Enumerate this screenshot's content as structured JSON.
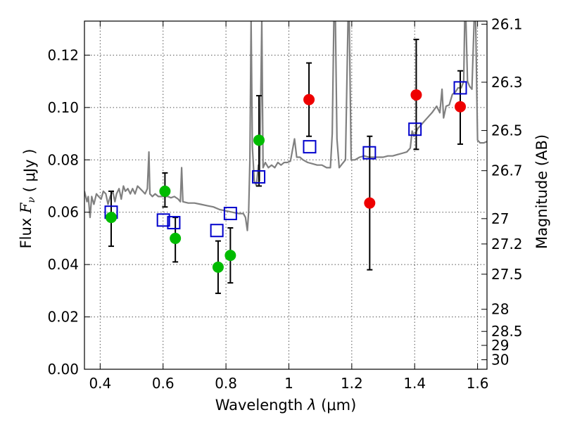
{
  "chart_data": {
    "type": "scatter",
    "xlabel_prefix": "Wavelength",
    "xlabel_symbol": "λ",
    "xlabel_unit": "(μm)",
    "ylabel_prefix": "Flux",
    "ylabel_symbol": "F",
    "ylabel_sub": "ν",
    "ylabel_unit": "( μJy )",
    "y2label": "Magnitude (AB)",
    "xlim": [
      0.35,
      1.63
    ],
    "ylim": [
      0.0,
      0.133
    ],
    "grid": true,
    "x_ticks": [
      0.4,
      0.6,
      0.8,
      1.0,
      1.2,
      1.4,
      1.6
    ],
    "x_tick_labels": [
      "0.4",
      "0.6",
      "0.8",
      "1",
      "1.2",
      "1.4",
      "1.6"
    ],
    "y_ticks": [
      0.0,
      0.02,
      0.04,
      0.06,
      0.08,
      0.1,
      0.12
    ],
    "y_tick_labels": [
      "0.00",
      "0.02",
      "0.04",
      "0.06",
      "0.08",
      "0.10",
      "0.12"
    ],
    "mag_ticks": [
      {
        "label": "26.1",
        "mag": 26.1
      },
      {
        "label": "26.3",
        "mag": 26.3
      },
      {
        "label": "26.5",
        "mag": 26.5
      },
      {
        "label": "26.7",
        "mag": 26.7
      },
      {
        "label": "27",
        "mag": 27.0
      },
      {
        "label": "27.2",
        "mag": 27.2
      },
      {
        "label": "27.5",
        "mag": 27.5
      },
      {
        "label": "28",
        "mag": 28.0
      },
      {
        "label": "28.5",
        "mag": 28.5
      },
      {
        "label": "29",
        "mag": 29.0
      },
      {
        "label": "30",
        "mag": 30.0
      }
    ],
    "series": [
      {
        "marker": "circle",
        "color": "#00bb00",
        "points": [
          {
            "x": 0.435,
            "y": 0.058,
            "err": [
              0.047,
              0.068
            ]
          },
          {
            "x": 0.606,
            "y": 0.068,
            "err": [
              0.062,
              0.075
            ]
          },
          {
            "x": 0.639,
            "y": 0.05,
            "err": [
              0.041,
              0.058
            ]
          },
          {
            "x": 0.775,
            "y": 0.039,
            "err": [
              0.029,
              0.049
            ]
          },
          {
            "x": 0.814,
            "y": 0.0435,
            "err": [
              0.033,
              0.054
            ]
          },
          {
            "x": 0.905,
            "y": 0.0875,
            "err": [
              0.07,
              0.1045
            ]
          }
        ]
      },
      {
        "marker": "circle",
        "color": "#ee0000",
        "points": [
          {
            "x": 1.064,
            "y": 0.103,
            "err": [
              0.089,
              0.117
            ]
          },
          {
            "x": 1.257,
            "y": 0.0635,
            "err": [
              0.038,
              0.089
            ]
          },
          {
            "x": 1.405,
            "y": 0.1048,
            "err": [
              0.084,
              0.126
            ]
          },
          {
            "x": 1.545,
            "y": 0.1003,
            "err": [
              0.086,
              0.114
            ]
          }
        ]
      },
      {
        "marker": "square-open",
        "color": "#0000cc",
        "points": [
          {
            "x": 0.435,
            "y": 0.06
          },
          {
            "x": 0.601,
            "y": 0.057
          },
          {
            "x": 0.634,
            "y": 0.056
          },
          {
            "x": 0.771,
            "y": 0.053
          },
          {
            "x": 0.814,
            "y": 0.0595
          },
          {
            "x": 0.904,
            "y": 0.0735
          },
          {
            "x": 1.066,
            "y": 0.085
          },
          {
            "x": 1.256,
            "y": 0.0827
          },
          {
            "x": 1.401,
            "y": 0.0917
          },
          {
            "x": 1.545,
            "y": 0.1075
          }
        ]
      },
      {
        "type": "line",
        "color": "#808080",
        "points": [
          [
            0.35,
            0.068
          ],
          [
            0.358,
            0.064
          ],
          [
            0.362,
            0.066
          ],
          [
            0.368,
            0.058
          ],
          [
            0.373,
            0.066
          ],
          [
            0.38,
            0.063
          ],
          [
            0.388,
            0.067
          ],
          [
            0.395,
            0.066
          ],
          [
            0.403,
            0.065
          ],
          [
            0.41,
            0.068
          ],
          [
            0.418,
            0.067
          ],
          [
            0.425,
            0.063
          ],
          [
            0.432,
            0.066
          ],
          [
            0.44,
            0.068
          ],
          [
            0.447,
            0.064
          ],
          [
            0.452,
            0.067
          ],
          [
            0.46,
            0.069
          ],
          [
            0.467,
            0.065
          ],
          [
            0.474,
            0.07
          ],
          [
            0.48,
            0.068
          ],
          [
            0.488,
            0.069
          ],
          [
            0.496,
            0.067
          ],
          [
            0.503,
            0.069
          ],
          [
            0.511,
            0.067
          ],
          [
            0.519,
            0.07
          ],
          [
            0.527,
            0.069
          ],
          [
            0.535,
            0.068
          ],
          [
            0.543,
            0.067
          ],
          [
            0.55,
            0.069
          ],
          [
            0.555,
            0.083
          ],
          [
            0.558,
            0.067
          ],
          [
            0.566,
            0.066
          ],
          [
            0.575,
            0.067
          ],
          [
            0.585,
            0.066
          ],
          [
            0.595,
            0.066
          ],
          [
            0.605,
            0.066
          ],
          [
            0.615,
            0.066
          ],
          [
            0.625,
            0.0655
          ],
          [
            0.636,
            0.066
          ],
          [
            0.648,
            0.065
          ],
          [
            0.655,
            0.064
          ],
          [
            0.659,
            0.077
          ],
          [
            0.663,
            0.064
          ],
          [
            0.68,
            0.0635
          ],
          [
            0.7,
            0.0635
          ],
          [
            0.72,
            0.063
          ],
          [
            0.74,
            0.0625
          ],
          [
            0.76,
            0.062
          ],
          [
            0.78,
            0.061
          ],
          [
            0.8,
            0.0605
          ],
          [
            0.82,
            0.06
          ],
          [
            0.84,
            0.0595
          ],
          [
            0.855,
            0.0595
          ],
          [
            0.862,
            0.058
          ],
          [
            0.868,
            0.053
          ],
          [
            0.872,
            0.06
          ],
          [
            0.876,
            0.08
          ],
          [
            0.88,
            0.133
          ],
          [
            0.884,
            0.085
          ],
          [
            0.89,
            0.072
          ],
          [
            0.897,
            0.07
          ],
          [
            0.903,
            0.078
          ],
          [
            0.907,
            0.072
          ],
          [
            0.914,
            0.133
          ],
          [
            0.918,
            0.077
          ],
          [
            0.925,
            0.079
          ],
          [
            0.935,
            0.077
          ],
          [
            0.945,
            0.078
          ],
          [
            0.955,
            0.077
          ],
          [
            0.965,
            0.079
          ],
          [
            0.975,
            0.078
          ],
          [
            0.985,
            0.079
          ],
          [
            0.995,
            0.079
          ],
          [
            1.005,
            0.0795
          ],
          [
            1.018,
            0.088
          ],
          [
            1.025,
            0.081
          ],
          [
            1.035,
            0.081
          ],
          [
            1.045,
            0.08
          ],
          [
            1.06,
            0.079
          ],
          [
            1.075,
            0.0785
          ],
          [
            1.09,
            0.078
          ],
          [
            1.105,
            0.078
          ],
          [
            1.12,
            0.077
          ],
          [
            1.132,
            0.077
          ],
          [
            1.138,
            0.09
          ],
          [
            1.143,
            0.133
          ],
          [
            1.148,
            0.133
          ],
          [
            1.153,
            0.088
          ],
          [
            1.16,
            0.077
          ],
          [
            1.17,
            0.0785
          ],
          [
            1.18,
            0.08
          ],
          [
            1.188,
            0.133
          ],
          [
            1.192,
            0.133
          ],
          [
            1.198,
            0.08
          ],
          [
            1.21,
            0.08
          ],
          [
            1.225,
            0.081
          ],
          [
            1.24,
            0.0815
          ],
          [
            1.255,
            0.081
          ],
          [
            1.27,
            0.081
          ],
          [
            1.285,
            0.081
          ],
          [
            1.3,
            0.081
          ],
          [
            1.315,
            0.0815
          ],
          [
            1.33,
            0.0815
          ],
          [
            1.345,
            0.082
          ],
          [
            1.36,
            0.0825
          ],
          [
            1.375,
            0.083
          ],
          [
            1.386,
            0.0845
          ],
          [
            1.392,
            0.091
          ],
          [
            1.398,
            0.089
          ],
          [
            1.41,
            0.092
          ],
          [
            1.425,
            0.094
          ],
          [
            1.44,
            0.096
          ],
          [
            1.455,
            0.098
          ],
          [
            1.47,
            0.1005
          ],
          [
            1.48,
            0.098
          ],
          [
            1.487,
            0.107
          ],
          [
            1.492,
            0.096
          ],
          [
            1.5,
            0.1005
          ],
          [
            1.51,
            0.101
          ],
          [
            1.52,
            0.105
          ],
          [
            1.53,
            0.106
          ],
          [
            1.538,
            0.1075
          ],
          [
            1.548,
            0.1075
          ],
          [
            1.556,
            0.11
          ],
          [
            1.559,
            0.133
          ],
          [
            1.563,
            0.133
          ],
          [
            1.568,
            0.11
          ],
          [
            1.575,
            0.108
          ],
          [
            1.582,
            0.107
          ],
          [
            1.589,
            0.133
          ],
          [
            1.594,
            0.133
          ],
          [
            1.6,
            0.0875
          ],
          [
            1.608,
            0.0865
          ],
          [
            1.62,
            0.0865
          ],
          [
            1.63,
            0.087
          ]
        ]
      }
    ]
  }
}
